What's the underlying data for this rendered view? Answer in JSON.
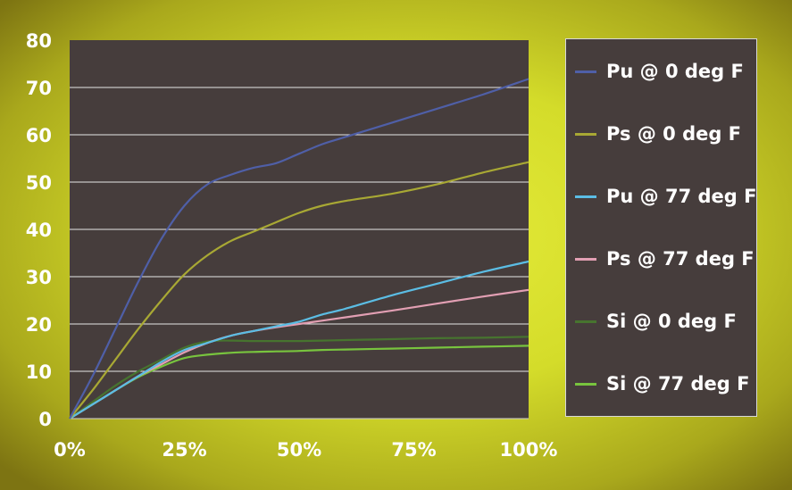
{
  "chart_data": {
    "type": "line",
    "title": "",
    "xlabel": "",
    "ylabel": "",
    "x_tick_labels": [
      "0%",
      "25%",
      "50%",
      "75%",
      "100%"
    ],
    "y_tick_labels": [
      "0",
      "10",
      "20",
      "30",
      "40",
      "50",
      "60",
      "70",
      "80"
    ],
    "xlim": [
      0,
      100
    ],
    "ylim": [
      0,
      80
    ],
    "grid": "horizontal",
    "legend_position": "right",
    "plot_background": "#463d3c",
    "x": [
      0,
      5,
      10,
      15,
      20,
      25,
      30,
      35,
      40,
      45,
      50,
      55,
      60,
      70,
      80,
      90,
      100
    ],
    "series": [
      {
        "name": "Pu @ 0 deg F",
        "color": "#4f5fa7",
        "values": [
          0,
          9,
          19,
          29,
          38,
          45,
          49.5,
          51.5,
          53,
          54,
          56,
          58,
          59.5,
          62.5,
          65.5,
          68.5,
          71.8
        ]
      },
      {
        "name": "Ps @ 0 deg F",
        "color": "#a8a834",
        "values": [
          0,
          6,
          12.5,
          19,
          25,
          30.5,
          34.5,
          37.5,
          39.5,
          41.5,
          43.5,
          45,
          46,
          47.5,
          49.5,
          52,
          54.2
        ]
      },
      {
        "name": "Pu @ 77 deg F",
        "color": "#5bbde4",
        "values": [
          0,
          3,
          6,
          9,
          12,
          14.5,
          16,
          17.5,
          18.5,
          19.5,
          20.5,
          22,
          23.2,
          26,
          28.5,
          31,
          33.2
        ]
      },
      {
        "name": "Ps @ 77 deg F",
        "color": "#e29fb3",
        "values": [
          0,
          3,
          6,
          9,
          11.5,
          14,
          16,
          17.5,
          18.5,
          19.3,
          20,
          20.7,
          21.4,
          22.8,
          24.3,
          25.8,
          27.2
        ]
      },
      {
        "name": "Si @ 0 deg F",
        "color": "#47742f",
        "values": [
          0,
          3.5,
          7,
          10,
          12.5,
          15,
          16.3,
          16.5,
          16.4,
          16.4,
          16.4,
          16.5,
          16.6,
          16.8,
          17,
          17.1,
          17.3
        ]
      },
      {
        "name": "Si @ 77 deg F",
        "color": "#78c43e",
        "values": [
          0,
          3,
          6,
          8.8,
          11,
          12.8,
          13.5,
          13.9,
          14.1,
          14.2,
          14.3,
          14.5,
          14.6,
          14.8,
          15,
          15.2,
          15.4
        ]
      }
    ]
  }
}
